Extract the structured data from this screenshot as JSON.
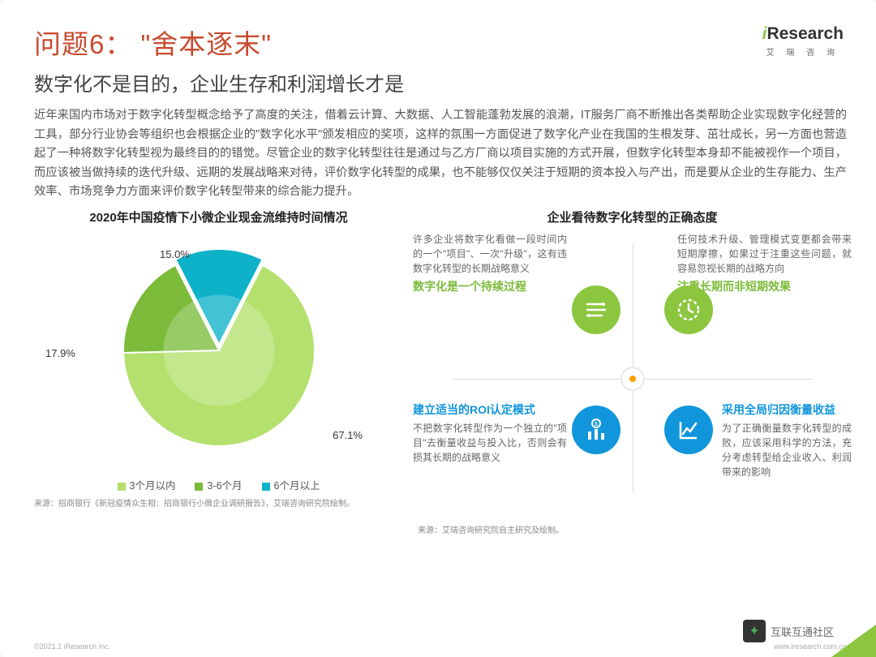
{
  "logo": {
    "brand_i": "i",
    "brand_rest": "Research",
    "sub": "艾 瑞 咨 询"
  },
  "title": "问题6： \"舍本逐末\"",
  "subtitle": "数字化不是目的，企业生存和利润增长才是",
  "body": "近年来国内市场对于数字化转型概念给予了高度的关注，借着云计算、大数据、人工智能蓬勃发展的浪潮，IT服务厂商不断推出各类帮助企业实现数字化经营的工具，部分行业协会等组织也会根据企业的\"数字化水平\"颁发相应的奖项，这样的氛围一方面促进了数字化产业在我国的生根发芽、茁壮成长，另一方面也营造起了一种将数字化转型视为最终目的的错觉。尽管企业的数字化转型往往是通过与乙方厂商以项目实施的方式开展，但数字化转型本身却不能被视作一个项目，而应该被当做持续的迭代升级、远期的发展战略来对待，评价数字化转型的成果，也不能够仅仅关注于短期的资本投入与产出，而是要从企业的生存能力、生产效率、市场竞争力方面来评价数字化转型带来的综合能力提升。",
  "left": {
    "title": "2020年中国疫情下小微企业现金流维持时间情况",
    "pie": {
      "type": "pie",
      "slices": [
        {
          "label": "3个月以内",
          "value": 67.1,
          "color": "#b4e06d"
        },
        {
          "label": "3-6个月",
          "value": 17.9,
          "color": "#7cbb3a"
        },
        {
          "label": "6个月以上",
          "value": 15.0,
          "color": "#0db2c9"
        }
      ],
      "label_color": "#333",
      "label_fontsize": 13,
      "donut_inner": 0.0,
      "background": "#ffffff"
    },
    "legend": [
      "3个月以内",
      "3-6个月",
      "6个月以上"
    ],
    "value_labels": {
      "a": "67.1%",
      "b": "17.9%",
      "c": "15.0%"
    },
    "source": "来源：招商银行《新冠疫情众生相：招商银行小微企业调研报告》，艾瑞咨询研究院绘制。"
  },
  "right": {
    "title": "企业看待数字化转型的正确态度",
    "q1": {
      "text": "许多企业将数字化看做一段时间内的一个\"项目\"、一次\"升级\"，这有违数字化转型的长期战略意义",
      "head": "数字化是一个持续过程"
    },
    "q2": {
      "text": "任何技术升级、管理模式变更都会带来短期摩擦，如果过于注重这些问题，就容易忽视长期的战略方向",
      "head": "注重长期而非短期效果"
    },
    "q3": {
      "head": "建立适当的ROI认定模式",
      "text": "不把数字化转型作为一个独立的\"项目\"去衡量收益与投入比，否则会有损其长期的战略意义"
    },
    "q4": {
      "head": "采用全局归因衡量收益",
      "text": "为了正确衡量数字化转型的成败，应该采用科学的方法，充分考虑转型给企业收入、利润带来的影响"
    },
    "source": "来源：艾瑞咨询研究院自主研究及绘制。",
    "icon_colors": {
      "green": "#8cc63f",
      "blue": "#1296db"
    }
  },
  "footer": {
    "left": "©2021.1 iResearch Inc.",
    "right": "www.iresearch.com.cn"
  },
  "watermark": "互联互通社区"
}
